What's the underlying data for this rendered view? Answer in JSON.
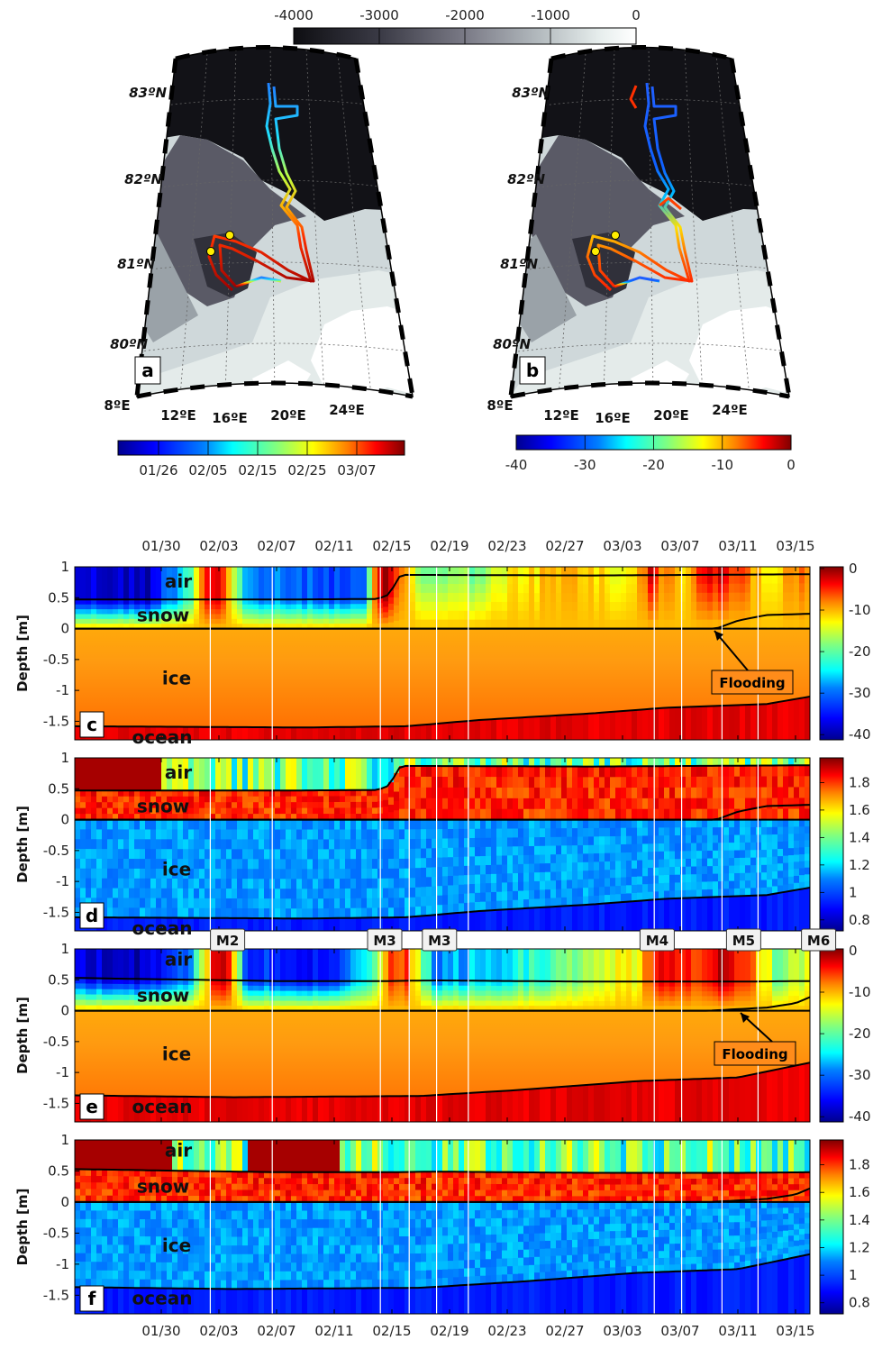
{
  "colors": {
    "jet": [
      "#00008f",
      "#0000ff",
      "#0080ff",
      "#00ffff",
      "#80ff80",
      "#ffff00",
      "#ff8000",
      "#ff0000",
      "#800000"
    ],
    "bathy": [
      "#0e0e12",
      "#3a3a45",
      "#7a7a86",
      "#b4bbbf",
      "#e8efee",
      "#ffffff"
    ],
    "warm_base": "#ff9a1e"
  },
  "chart_data": [
    {
      "id": "bathymetry-colorbar",
      "type": "colorbar",
      "ticks": [
        "-4000",
        "-3000",
        "-2000",
        "-1000",
        "0"
      ],
      "values": [
        -4000,
        -3000,
        -2000,
        -1000,
        0
      ]
    },
    {
      "id": "map-a",
      "type": "map",
      "panel": "a",
      "lat_labels": [
        "83ºN",
        "82ºN",
        "81ºN",
        "80ºN"
      ],
      "lon_labels": [
        "8ºE",
        "12ºE",
        "16ºE",
        "20ºE",
        "24ºE"
      ],
      "colorbar_ticks": [
        "01/26",
        "02/05",
        "02/15",
        "02/25",
        "03/07"
      ]
    },
    {
      "id": "map-b",
      "type": "map",
      "panel": "b",
      "lat_labels": [
        "83ºN",
        "82ºN",
        "81ºN",
        "80ºN"
      ],
      "lon_labels": [
        "8ºE",
        "12ºE",
        "16ºE",
        "20ºE",
        "24ºE"
      ],
      "colorbar_ticks": [
        "-40",
        "-30",
        "-20",
        "-10",
        "0"
      ]
    },
    {
      "id": "time-series",
      "type": "heatmap",
      "x_ticks": [
        "01/30",
        "02/03",
        "02/07",
        "02/11",
        "02/15",
        "02/19",
        "02/23",
        "02/27",
        "03/03",
        "03/07",
        "03/11",
        "03/15"
      ],
      "x_range_days": [
        -6,
        45
      ],
      "y_ticks": [
        "1",
        "0.5",
        "0",
        "-0.5",
        "-1",
        "-1.5"
      ],
      "y_range": [
        -1.8,
        1
      ],
      "ylabel": "Depth [m]",
      "layer_labels": [
        "air",
        "snow",
        "ice",
        "ocean"
      ],
      "panels": [
        {
          "letter": "c",
          "kind": "temperature",
          "cbar_ticks": [
            "0",
            "-10",
            "-20",
            "-30",
            "-40"
          ],
          "flooding": "Flooding"
        },
        {
          "letter": "d",
          "kind": "heating",
          "cbar_ticks": [
            "1.8",
            "1.6",
            "1.4",
            "1.2",
            "1",
            "0.8"
          ]
        },
        {
          "letter": "e",
          "kind": "temperature",
          "cbar_ticks": [
            "0",
            "-10",
            "-20",
            "-30",
            "-40"
          ],
          "flooding": "Flooding"
        },
        {
          "letter": "f",
          "kind": "heating",
          "cbar_ticks": [
            "1.8",
            "1.6",
            "1.4",
            "1.2",
            "1",
            "0.8"
          ]
        }
      ],
      "storm_markers": [
        {
          "label": "M2",
          "x": 4.6
        },
        {
          "label": "M3",
          "x": 15.5
        },
        {
          "label": "M3",
          "x": 19.3
        },
        {
          "label": "M4",
          "x": 34.4
        },
        {
          "label": "M5",
          "x": 40.4
        },
        {
          "label": "M6",
          "x": 45.6
        }
      ],
      "event_lines": [
        3.4,
        7.7,
        15.2,
        17.2,
        19.1,
        21.3,
        34.2,
        36.1,
        38.9,
        41.4,
        46.2
      ]
    }
  ]
}
